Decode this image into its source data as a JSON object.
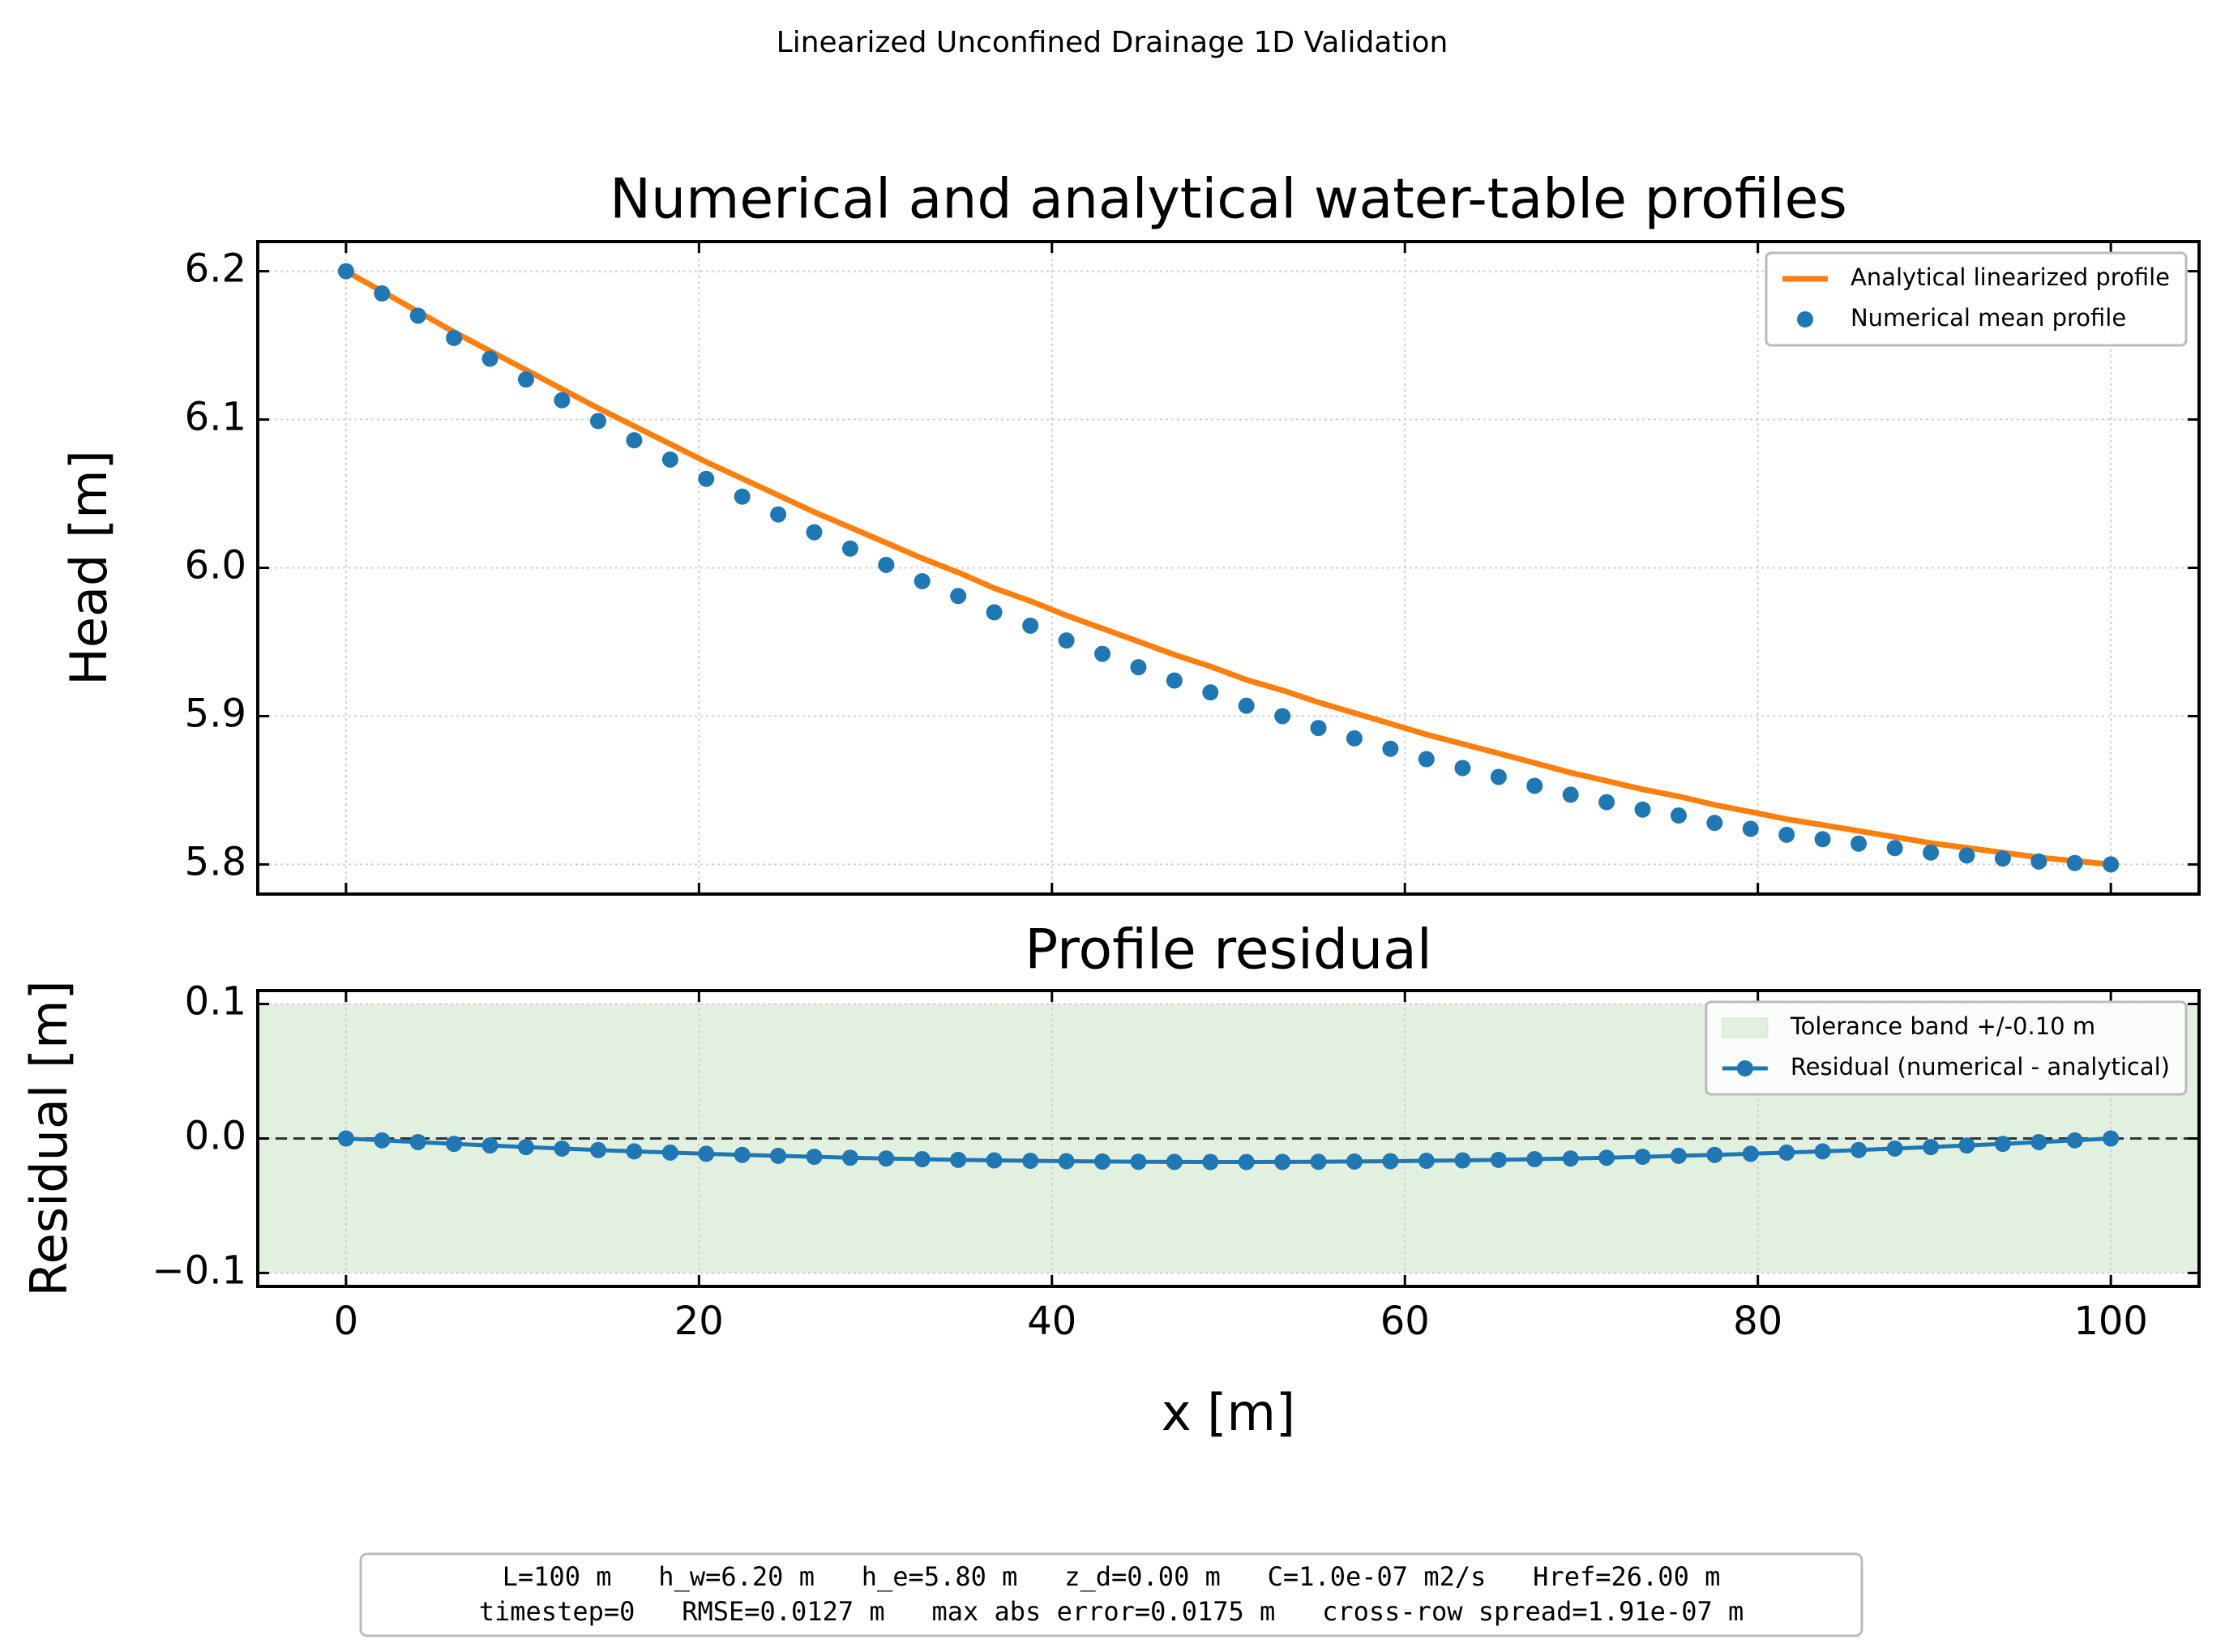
{
  "title": "Linearized Unconfined Drainage 1D Validation",
  "footer": [
    "L=100 m   h_w=6.20 m   h_e=5.80 m   z_d=0.00 m   C=1.0e-07 m2/s   Href=26.00 m",
    "timestep=0   RMSE=0.0127 m   max abs error=0.0175 m   cross-row spread=1.91e-07 m"
  ],
  "chart_data": [
    {
      "type": "line",
      "title": "Numerical and analytical water-table profiles",
      "ylabel": "Head [m]",
      "x": [
        0,
        2.04,
        4.08,
        6.12,
        8.16,
        10.2,
        12.24,
        14.29,
        16.33,
        18.37,
        20.41,
        22.45,
        24.49,
        26.53,
        28.57,
        30.61,
        32.65,
        34.69,
        36.73,
        38.78,
        40.82,
        42.86,
        44.9,
        46.94,
        48.98,
        51.02,
        53.06,
        55.1,
        57.14,
        59.18,
        61.22,
        63.27,
        65.31,
        67.35,
        69.39,
        71.43,
        73.47,
        75.51,
        77.55,
        79.59,
        81.63,
        83.67,
        85.71,
        87.76,
        89.8,
        91.84,
        93.88,
        95.92,
        97.96,
        100
      ],
      "series": [
        {
          "name": "Analytical linearized profile",
          "color": "#ff7f0e",
          "mode": "line",
          "values": [
            6.2,
            6.1864,
            6.1727,
            6.159,
            6.1462,
            6.1334,
            6.1205,
            6.1076,
            6.0956,
            6.0835,
            6.0714,
            6.0602,
            6.0489,
            6.0376,
            6.0273,
            6.0169,
            6.0064,
            5.9969,
            5.9863,
            5.9776,
            5.9679,
            5.9591,
            5.9503,
            5.9414,
            5.9335,
            5.9245,
            5.9174,
            5.9093,
            5.9021,
            5.8949,
            5.8876,
            5.8813,
            5.8749,
            5.8684,
            5.8619,
            5.8563,
            5.8506,
            5.8459,
            5.8402,
            5.8354,
            5.8305,
            5.8266,
            5.8226,
            5.8185,
            5.8144,
            5.8112,
            5.808,
            5.8047,
            5.8024,
            5.8
          ]
        },
        {
          "name": "Numerical mean profile",
          "color": "#1f77b4",
          "mode": "markers",
          "values": [
            6.2,
            6.185,
            6.17,
            6.155,
            6.141,
            6.127,
            6.113,
            6.099,
            6.086,
            6.073,
            6.06,
            6.048,
            6.036,
            6.024,
            6.013,
            6.002,
            5.991,
            5.981,
            5.97,
            5.961,
            5.951,
            5.942,
            5.933,
            5.924,
            5.916,
            5.907,
            5.9,
            5.892,
            5.885,
            5.878,
            5.871,
            5.865,
            5.859,
            5.853,
            5.847,
            5.842,
            5.837,
            5.833,
            5.828,
            5.824,
            5.82,
            5.817,
            5.814,
            5.811,
            5.808,
            5.806,
            5.804,
            5.802,
            5.801,
            5.8
          ]
        }
      ],
      "xlim": [
        -5,
        105
      ],
      "ylim": [
        5.78,
        6.22
      ],
      "xticks": [
        0,
        20,
        40,
        60,
        80,
        100
      ],
      "yticks": [
        5.8,
        5.9,
        {
          "value": 6,
          "label": "6.0"
        },
        6.1,
        6.2
      ],
      "grid": true,
      "legend": "upper right"
    },
    {
      "type": "line",
      "title": "Profile residual",
      "xlabel": "x [m]",
      "ylabel": "Residual [m]",
      "x": [
        0,
        2.04,
        4.08,
        6.12,
        8.16,
        10.2,
        12.24,
        14.29,
        16.33,
        18.37,
        20.41,
        22.45,
        24.49,
        26.53,
        28.57,
        30.61,
        32.65,
        34.69,
        36.73,
        38.78,
        40.82,
        42.86,
        44.9,
        46.94,
        48.98,
        51.02,
        53.06,
        55.1,
        57.14,
        59.18,
        61.22,
        63.27,
        65.31,
        67.35,
        69.39,
        71.43,
        73.47,
        75.51,
        77.55,
        79.59,
        81.63,
        83.67,
        85.71,
        87.76,
        89.8,
        91.84,
        93.88,
        95.92,
        97.96,
        100
      ],
      "band": {
        "name": "Tolerance band +/-0.10 m",
        "color": "#e2f0df",
        "values": [
          -0.1,
          0.1
        ]
      },
      "hline": 0,
      "series": [
        {
          "name": "Residual (numerical - analytical)",
          "color": "#1f77b4",
          "mode": "line+markers",
          "values": [
            0,
            -0.0014,
            -0.0027,
            -0.004,
            -0.0052,
            -0.0064,
            -0.0075,
            -0.0086,
            -0.0096,
            -0.0105,
            -0.0114,
            -0.0122,
            -0.0129,
            -0.0136,
            -0.0143,
            -0.0149,
            -0.0154,
            -0.0159,
            -0.0163,
            -0.0166,
            -0.0169,
            -0.0171,
            -0.0173,
            -0.0174,
            -0.0175,
            -0.0175,
            -0.0174,
            -0.0173,
            -0.0171,
            -0.0169,
            -0.0166,
            -0.0163,
            -0.0159,
            -0.0154,
            -0.0149,
            -0.0143,
            -0.0136,
            -0.0129,
            -0.0122,
            -0.0114,
            -0.0105,
            -0.0096,
            -0.0086,
            -0.0075,
            -0.0064,
            -0.0052,
            -0.004,
            -0.0027,
            -0.0014,
            0
          ]
        }
      ],
      "xlim": [
        -5,
        105
      ],
      "ylim": [
        -0.11,
        0.11
      ],
      "xticks": [
        0,
        20,
        40,
        60,
        80,
        100
      ],
      "yticks": [
        {
          "value": -0.1,
          "label": "−0.1"
        },
        {
          "value": 0,
          "label": "0.0"
        },
        0.1
      ],
      "grid": true,
      "legend": "upper right"
    }
  ]
}
